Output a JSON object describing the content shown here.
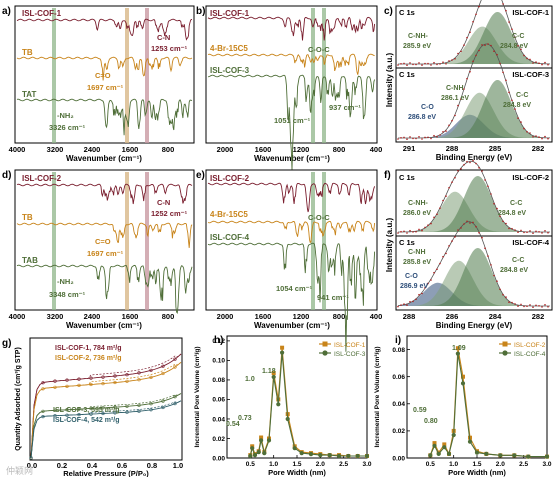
{
  "colors": {
    "cof": "#7a1e2e",
    "mono": "#c8841a",
    "amine": "#4f6e38",
    "band_green": "#8fb58a",
    "band_pink": "#c99aa3",
    "band_tan": "#d8b888",
    "fit": "#b02020",
    "env": "#555555"
  },
  "panels": {
    "a": {
      "letter": "a)",
      "xlabel": "Wavenumber (cm⁻¹)",
      "ticks": [
        "4000",
        "3200",
        "2400",
        "1600",
        "800"
      ]
    },
    "b": {
      "letter": "b)",
      "xlabel": "Wavenumber (cm⁻¹)",
      "ticks": [
        "2000",
        "1600",
        "1200",
        "800",
        "400"
      ]
    },
    "c": {
      "letter": "c)",
      "xlabel": "Binding Energy (eV)",
      "ylabel": "Intensity (a.u.)",
      "ticks": [
        "291",
        "288",
        "285",
        "282"
      ]
    },
    "d": {
      "letter": "d)",
      "xlabel": "Wavenumber (cm⁻¹)",
      "ticks": [
        "4000",
        "3200",
        "2400",
        "1600",
        "800"
      ]
    },
    "e": {
      "letter": "e)",
      "xlabel": "Wavenumber (cm⁻¹)",
      "ticks": [
        "2000",
        "1600",
        "1200",
        "800",
        "400"
      ]
    },
    "f": {
      "letter": "f)",
      "xlabel": "Binding Energy (eV)",
      "ylabel": "Intensity (a.u.)",
      "ticks": [
        "288",
        "286",
        "284",
        "282"
      ]
    },
    "g": {
      "letter": "g)",
      "xlabel": "Relative Pressure (P/P₀)",
      "ylabel": "Quantity Adsorbed (cm³/g STP)",
      "ticks": [
        "0.0",
        "0.2",
        "0.4",
        "0.6",
        "0.8",
        "1.0"
      ]
    },
    "h": {
      "letter": "h)",
      "xlabel": "Pore Width (nm)",
      "ylabel": "Incremental Pore Volume (cm³/g)"
    },
    "i": {
      "letter": "i)",
      "xlabel": "Pore Width (nm)",
      "ylabel": "Incremental Pore Volume (cm³/g)"
    }
  },
  "labels": {
    "a_cof": "ISL-COF-1",
    "a_tb": "TB",
    "a_tat": "TAT",
    "a_cn": "C-N",
    "a_cn_val": "1253 cm⁻¹",
    "a_co": "C=O",
    "a_co_val": "1697 cm⁻¹",
    "a_nh": "-NH₂",
    "a_nh_val": "3326 cm⁻¹",
    "b_cof": "ISL-COF-1",
    "b_br": "4-Br-15C5",
    "b_cof3": "ISL-COF-3",
    "b_coc": "C-O-C",
    "b_937": "937 cm⁻¹",
    "b_1051": "1051 cm⁻¹",
    "d_cof": "ISL-COF-2",
    "d_tb": "TB",
    "d_tab": "TAB",
    "d_cn": "C-N",
    "d_cn_val": "1252 cm⁻¹",
    "d_co": "C=O",
    "d_co_val": "1697 cm⁻¹",
    "d_nh": "-NH₂",
    "d_nh_val": "3348 cm⁻¹",
    "e_cof": "ISL-COF-2",
    "e_br": "4-Br-15C5",
    "e_cof4": "ISL-COF-4",
    "e_coc": "C-O-C",
    "e_1054": "1054 cm⁻¹",
    "e_941": "941 cm⁻¹",
    "c_c1s_top": "C 1s",
    "c_name_top": "ISL-COF-1",
    "c_cnh_top": "C-NH-",
    "c_cnh_top_val": "285.9 eV",
    "c_cc_top": "C-C",
    "c_cc_top_val": "284.8 eV",
    "c_c1s_bot": "C 1s",
    "c_name_bot": "ISL-COF-3",
    "c_cnh_bot": "C-NH",
    "c_cnh_bot_val": "286.1 eV",
    "c_co_bot": "C-O",
    "c_co_bot_val": "286.8 eV",
    "c_cc_bot": "C-C",
    "c_cc_bot_val": "284.8 eV",
    "f_c1s_top": "C 1s",
    "f_name_top": "ISL-COF-2",
    "f_cnh_top": "C-NH-",
    "f_cnh_top_val": "286.0 eV",
    "f_cc_top": "C-C",
    "f_cc_top_val": "284.8 eV",
    "f_c1s_bot": "C 1s",
    "f_name_bot": "ISL-COF-4",
    "f_cnh_bot": "C-NH",
    "f_cnh_bot_val": "285.8 eV",
    "f_co_bot": "C-O",
    "f_co_bot_val": "286.9 eV",
    "f_cc_bot": "C-C",
    "f_cc_bot_val": "284.8 eV",
    "g_1": "ISL-COF-1, 784 m²/g",
    "g_2": "ISL-COF-2, 736 m²/g",
    "g_3": "ISL-COF-3, 595 m²/g",
    "g_4": "ISL-COF-4, 542 m²/g",
    "h_054": "0.54",
    "h_073": "0.73",
    "h_10": "1.0",
    "h_118": "1.18",
    "i_059": "0.59",
    "i_080": "0.80",
    "i_109": "1.09",
    "watermark": "仲颖网"
  },
  "chart_data": [
    {
      "panel": "a",
      "type": "line",
      "title": "",
      "xlabel": "Wavenumber (cm⁻¹)",
      "xlim": [
        4000,
        400
      ],
      "series": [
        {
          "name": "ISL-COF-1"
        },
        {
          "name": "TB"
        },
        {
          "name": "TAT"
        }
      ],
      "annotations": [
        "C-N 1253 cm⁻¹",
        "C=O 1697 cm⁻¹",
        "-NH₂ 3326 cm⁻¹"
      ]
    },
    {
      "panel": "b",
      "type": "line",
      "xlabel": "Wavenumber (cm⁻¹)",
      "xlim": [
        2200,
        400
      ],
      "series": [
        {
          "name": "ISL-COF-1"
        },
        {
          "name": "4-Br-15C5"
        },
        {
          "name": "ISL-COF-3"
        }
      ],
      "annotations": [
        "C-O-C",
        "937 cm⁻¹",
        "1051 cm⁻¹"
      ]
    },
    {
      "panel": "c",
      "type": "line",
      "xlabel": "Binding Energy (eV)",
      "ylabel": "Intensity (a.u.)",
      "xlim": [
        292,
        281
      ],
      "fits": [
        {
          "sample": "ISL-COF-1",
          "peaks": [
            {
              "name": "C-NH-",
              "center": 285.9
            },
            {
              "name": "C-C",
              "center": 284.8
            }
          ]
        },
        {
          "sample": "ISL-COF-3",
          "peaks": [
            {
              "name": "C-O",
              "center": 286.8
            },
            {
              "name": "C-NH",
              "center": 286.1
            },
            {
              "name": "C-C",
              "center": 284.8
            }
          ]
        }
      ]
    },
    {
      "panel": "d",
      "type": "line",
      "xlabel": "Wavenumber (cm⁻¹)",
      "xlim": [
        4000,
        400
      ],
      "series": [
        {
          "name": "ISL-COF-2"
        },
        {
          "name": "TB"
        },
        {
          "name": "TAB"
        }
      ],
      "annotations": [
        "C-N 1252 cm⁻¹",
        "C=O 1697 cm⁻¹",
        "-NH₂ 3348 cm⁻¹"
      ]
    },
    {
      "panel": "e",
      "type": "line",
      "xlabel": "Wavenumber (cm⁻¹)",
      "xlim": [
        2200,
        400
      ],
      "series": [
        {
          "name": "ISL-COF-2"
        },
        {
          "name": "4-Br-15C5"
        },
        {
          "name": "ISL-COF-4"
        }
      ],
      "annotations": [
        "C-O-C",
        "1054 cm⁻¹",
        "941 cm⁻¹"
      ]
    },
    {
      "panel": "f",
      "type": "line",
      "xlabel": "Binding Energy (eV)",
      "ylabel": "Intensity (a.u.)",
      "xlim": [
        289,
        281
      ],
      "fits": [
        {
          "sample": "ISL-COF-2",
          "peaks": [
            {
              "name": "C-NH-",
              "center": 286.0
            },
            {
              "name": "C-C",
              "center": 284.8
            }
          ]
        },
        {
          "sample": "ISL-COF-4",
          "peaks": [
            {
              "name": "C-O",
              "center": 286.9
            },
            {
              "name": "C-NH",
              "center": 285.8
            },
            {
              "name": "C-C",
              "center": 284.8
            }
          ]
        }
      ]
    },
    {
      "panel": "g",
      "type": "line",
      "xlabel": "Relative Pressure (P/P₀)",
      "ylabel": "Quantity Adsorbed (cm³/g STP)",
      "xlim": [
        0,
        1
      ],
      "series": [
        {
          "name": "ISL-COF-1, 784 m²/g",
          "plateau": 1.0
        },
        {
          "name": "ISL-COF-2, 736 m²/g",
          "plateau": 0.92
        },
        {
          "name": "ISL-COF-3, 595 m²/g",
          "plateau": 0.62
        },
        {
          "name": "ISL-COF-4, 542 m²/g",
          "plateau": 0.55
        }
      ]
    },
    {
      "panel": "h",
      "type": "line",
      "xlabel": "Pore Width (nm)",
      "ylabel": "Incremental Pore Volume (cm³/g)",
      "xlim": [
        0,
        3.0
      ],
      "ylim": [
        0,
        0.125
      ],
      "xticks": [
        0.5,
        1.0,
        1.5,
        2.0,
        2.5,
        3.0
      ],
      "yticks": [
        0,
        0.02,
        0.04,
        0.06,
        0.08,
        0.1,
        0.12
      ],
      "series": [
        {
          "name": "ISL-COF-1",
          "x": [
            0.5,
            0.54,
            0.6,
            0.68,
            0.73,
            0.8,
            0.9,
            1.0,
            1.1,
            1.18,
            1.3,
            1.45,
            1.6,
            1.8,
            2.0,
            2.2,
            2.4,
            2.6,
            2.8,
            3.0
          ],
          "y": [
            0.003,
            0.012,
            0.004,
            0.007,
            0.021,
            0.006,
            0.02,
            0.087,
            0.06,
            0.113,
            0.045,
            0.012,
            0.006,
            0.005,
            0.004,
            0.003,
            0.003,
            0.002,
            0.002,
            0.002
          ]
        },
        {
          "name": "ISL-COF-3",
          "x": [
            0.5,
            0.54,
            0.6,
            0.68,
            0.73,
            0.8,
            0.9,
            1.0,
            1.1,
            1.18,
            1.3,
            1.45,
            1.6,
            1.8,
            2.0,
            2.2,
            2.4,
            2.6,
            2.8,
            3.0
          ],
          "y": [
            0.002,
            0.01,
            0.003,
            0.006,
            0.018,
            0.005,
            0.018,
            0.083,
            0.055,
            0.108,
            0.04,
            0.01,
            0.005,
            0.004,
            0.003,
            0.003,
            0.002,
            0.002,
            0.002,
            0.002
          ]
        }
      ]
    },
    {
      "panel": "i",
      "type": "line",
      "xlabel": "Pore Width (nm)",
      "ylabel": "Incremental Pore Volume (cm³/g)",
      "xlim": [
        0,
        3.0
      ],
      "ylim": [
        0,
        0.09
      ],
      "xticks": [
        0.5,
        1.0,
        1.5,
        2.0,
        2.5,
        3.0
      ],
      "yticks": [
        0,
        0.02,
        0.04,
        0.06,
        0.08
      ],
      "series": [
        {
          "name": "ISL-COF-2",
          "x": [
            0.5,
            0.59,
            0.68,
            0.8,
            0.9,
            1.0,
            1.09,
            1.2,
            1.35,
            1.5,
            1.7,
            2.0,
            2.3,
            2.6,
            3.0
          ],
          "y": [
            0.002,
            0.011,
            0.004,
            0.01,
            0.003,
            0.02,
            0.081,
            0.06,
            0.015,
            0.005,
            0.003,
            0.002,
            0.002,
            0.001,
            0.001
          ]
        },
        {
          "name": "ISL-COF-4",
          "x": [
            0.5,
            0.59,
            0.68,
            0.8,
            0.9,
            1.0,
            1.09,
            1.2,
            1.35,
            1.5,
            1.7,
            2.0,
            2.3,
            2.6,
            3.0
          ],
          "y": [
            0.002,
            0.009,
            0.003,
            0.008,
            0.003,
            0.017,
            0.077,
            0.055,
            0.012,
            0.004,
            0.003,
            0.002,
            0.002,
            0.001,
            0.001
          ]
        }
      ]
    }
  ]
}
